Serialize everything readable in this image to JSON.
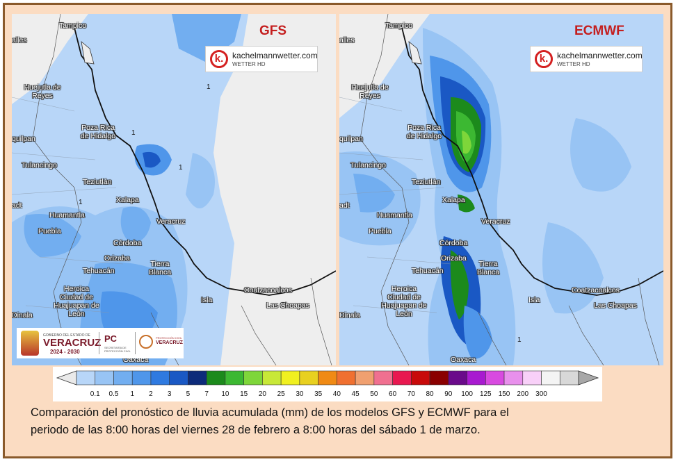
{
  "maps": [
    {
      "model": "GFS",
      "cities": [
        "Tampico",
        "Huejutla de Reyes",
        "Poza Rica de Hidalgo",
        "Tulancingo",
        "Teziutlán",
        "Xalapa",
        "Huamantla",
        "Puebla",
        "Córdoba",
        "Orizaba",
        "Veracruz",
        "Tehuacán",
        "Tierra Blanca",
        "Heroica Ciudad de Huajuapan de León",
        "Isla",
        "Coatzacoalcos",
        "Las Choapas",
        "Oaxaca"
      ],
      "partial_labels": [
        "alles",
        "quilpan",
        "adt",
        "Dinala"
      ],
      "contour_labels": [
        "1",
        "1",
        "1",
        "1"
      ]
    },
    {
      "model": "ECMWF",
      "cities": [
        "Tampico",
        "Huejutla de Reyes",
        "Poza Rica de Hidalgo",
        "Tulancingo",
        "Teziutlán",
        "Xalapa",
        "Huamantla",
        "Puebla",
        "Córdoba",
        "Orizaba",
        "Veracruz",
        "Tehuacán",
        "Tierra Blanca",
        "Heroica Ciudad de Huajuapan de León",
        "Isla",
        "Coatzacoalcos",
        "Las Choapas",
        "Oaxaca"
      ],
      "partial_labels": [
        "alles",
        "quilpan",
        "adt",
        "Dinala"
      ],
      "contour_labels": [
        "1"
      ]
    }
  ],
  "logo": {
    "name": "kachelmannwetter.com",
    "sub": "WETTER HD",
    "letter": "k."
  },
  "gov_logo": {
    "line1": "GOBIERNO DEL ESTADO DE",
    "line2": "VERACRUZ",
    "line3": "2024 - 2030",
    "pc": "PC",
    "pc_sub": "SECRETARÍA DE PROTECCIÓN CIVIL",
    "ver_small": "PROTECCIÓN CIVIL",
    "ver_big": "VERACRUZ"
  },
  "colorbar": {
    "labels": [
      "0.1",
      "0.5",
      "1",
      "2",
      "3",
      "5",
      "7",
      "10",
      "15",
      "20",
      "25",
      "30",
      "35",
      "40",
      "45",
      "50",
      "60",
      "70",
      "80",
      "90",
      "100",
      "125",
      "150",
      "200",
      "300"
    ],
    "colors": [
      "#b8d6f8",
      "#98c4f4",
      "#72aef0",
      "#4f96ea",
      "#2f7ae0",
      "#1a58c4",
      "#0d2b7a",
      "#1c8a1c",
      "#3cb832",
      "#7ed63a",
      "#c8e838",
      "#f0f020",
      "#e8d020",
      "#f08a14",
      "#f07030",
      "#f0a070",
      "#f07090",
      "#e81850",
      "#c80a0a",
      "#8a0000",
      "#6a0a8a",
      "#a81ad0",
      "#d84ae0",
      "#e890ec",
      "#f8d0f8",
      "#f4f4f4",
      "#d8d8d8"
    ],
    "min_color": "#eaeaea",
    "max_color": "#a8a8a8"
  },
  "caption": {
    "line1": "Comparación del pronóstico de lluvia acumulada (mm) de los modelos GFS y ECMWF para el",
    "line2": "periodo de las 8:00 horas del viernes 28 de febrero a 8:00 horas del sábado 1 de marzo."
  }
}
